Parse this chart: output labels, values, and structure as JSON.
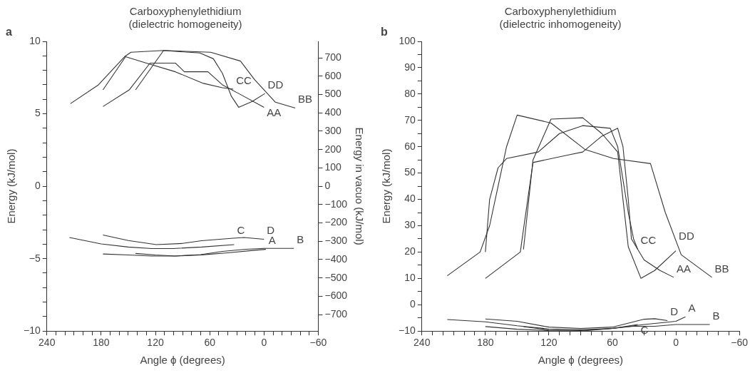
{
  "chart_data": [
    {
      "type": "line",
      "title": "Carboxyphenylethidium\n(dielectric homogeneity)",
      "xlabel": "Angle ϕ (degrees)",
      "ylabel": "Energy (kJ/mol)",
      "y2label": "Energy in vacuo (kJ/mol)",
      "annotations": [
        "a"
      ],
      "xlim": [
        240,
        -60
      ],
      "xticks": [
        240,
        {
          "value": 230,
          "label": null
        },
        {
          "value": 220,
          "label": null
        },
        {
          "value": 210,
          "label": null
        },
        {
          "value": 200,
          "label": null
        },
        {
          "value": 190,
          "label": null
        },
        180,
        {
          "value": 170,
          "label": null
        },
        {
          "value": 160,
          "label": null
        },
        {
          "value": 150,
          "label": null
        },
        {
          "value": 140,
          "label": null
        },
        {
          "value": 130,
          "label": null
        },
        120,
        {
          "value": 110,
          "label": null
        },
        {
          "value": 100,
          "label": null
        },
        {
          "value": 90,
          "label": null
        },
        {
          "value": 80,
          "label": null
        },
        {
          "value": 70,
          "label": null
        },
        60,
        {
          "value": 50,
          "label": null
        },
        {
          "value": 40,
          "label": null
        },
        {
          "value": 30,
          "label": null
        },
        {
          "value": 20,
          "label": null
        },
        {
          "value": 10,
          "label": null
        },
        0,
        {
          "value": -10,
          "label": null
        },
        {
          "value": -20,
          "label": null
        },
        {
          "value": -30,
          "label": null
        },
        {
          "value": -40,
          "label": null
        },
        {
          "value": -50,
          "label": null
        },
        -60
      ],
      "ylim": [
        -10,
        10
      ],
      "yticks": [
        -10,
        {
          "value": -9,
          "label": null
        },
        {
          "value": -8,
          "label": null
        },
        {
          "value": -7,
          "label": null
        },
        {
          "value": -6,
          "label": null
        },
        -5,
        {
          "value": -4,
          "label": null
        },
        {
          "value": -3,
          "label": null
        },
        {
          "value": -2,
          "label": null
        },
        {
          "value": -1,
          "label": null
        },
        0,
        {
          "value": 1,
          "label": null
        },
        {
          "value": 2,
          "label": null
        },
        {
          "value": 3,
          "label": null
        },
        {
          "value": 4,
          "label": null
        },
        5,
        {
          "value": 6,
          "label": null
        },
        {
          "value": 7,
          "label": null
        },
        {
          "value": 8,
          "label": null
        },
        {
          "value": 9,
          "label": null
        },
        10
      ],
      "y2lim": [
        -790,
        790
      ],
      "y2ticks": [
        -700,
        -600,
        -500,
        -400,
        -300,
        -200,
        -100,
        0,
        100,
        200,
        300,
        400,
        500,
        600,
        700
      ],
      "grid": false,
      "legend": false,
      "marker": "none",
      "line_style": "solid",
      "series": [
        {
          "name": "AA",
          "color": "#333333",
          "x": [
            178,
            149,
            126,
            98,
            88,
            62,
            46,
            28,
            0
          ],
          "values": [
            5.5,
            6.65,
            8.5,
            8.5,
            7.9,
            7.9,
            7.0,
            6.4,
            5.45
          ]
        },
        {
          "name": "BB",
          "color": "#333333",
          "x": [
            214,
            183,
            154,
            147,
            111,
            59,
            26,
            10.6,
            -12.6,
            -34.5
          ],
          "values": [
            5.7,
            7.0,
            8.95,
            9.25,
            9.37,
            9.25,
            8.64,
            7.37,
            5.8,
            5.4
          ]
        },
        {
          "name": "CC",
          "color": "#333333",
          "x": [
            178,
            153,
            130,
            98,
            67,
            46,
            34
          ],
          "values": [
            6.65,
            8.94,
            8.5,
            7.9,
            7.1,
            6.8,
            6.7
          ]
        },
        {
          "name": "DD",
          "color": "#333333",
          "x": [
            142,
            111,
            71,
            56,
            46,
            36,
            28,
            13,
            -1
          ],
          "values": [
            6.65,
            9.37,
            9.2,
            8.8,
            7.8,
            6.2,
            5.45,
            5.85,
            6.4
          ]
        },
        {
          "name": "A",
          "color": "#333333",
          "x": [
            178,
            150,
            124,
            98,
            69,
            40,
            10,
            -2
          ],
          "values": [
            -4.68,
            -4.75,
            -4.82,
            -4.82,
            -4.74,
            -4.6,
            -4.42,
            -4.36
          ]
        },
        {
          "name": "B",
          "color": "#333333",
          "x": [
            142,
            120,
            98,
            70,
            46,
            20,
            0,
            -33
          ],
          "values": [
            -4.64,
            -4.75,
            -4.82,
            -4.72,
            -4.5,
            -4.35,
            -4.29,
            -4.29
          ]
        },
        {
          "name": "C",
          "color": "#333333",
          "x": [
            215,
            180,
            150,
            124,
            100,
            69,
            33
          ],
          "values": [
            -3.54,
            -3.98,
            -4.2,
            -4.3,
            -4.3,
            -4.2,
            -4.03
          ]
        },
        {
          "name": "D",
          "color": "#333333",
          "x": [
            178,
            150,
            119,
            90,
            69,
            34,
            22,
            0
          ],
          "values": [
            -3.37,
            -3.75,
            -4.03,
            -3.95,
            -3.76,
            -3.59,
            -3.54,
            -3.66
          ]
        }
      ]
    },
    {
      "type": "line",
      "title": "Carboxyphenylethidium\n(dielectric inhomogeneity)",
      "xlabel": "Angle ϕ (degrees)",
      "ylabel": "Energy (kJ/mol)",
      "annotations": [
        "b"
      ],
      "xlim": [
        240,
        -60
      ],
      "xticks": [
        240,
        {
          "value": 230,
          "label": null
        },
        {
          "value": 220,
          "label": null
        },
        {
          "value": 210,
          "label": null
        },
        {
          "value": 200,
          "label": null
        },
        {
          "value": 190,
          "label": null
        },
        180,
        {
          "value": 170,
          "label": null
        },
        {
          "value": 160,
          "label": null
        },
        {
          "value": 150,
          "label": null
        },
        {
          "value": 140,
          "label": null
        },
        {
          "value": 130,
          "label": null
        },
        120,
        {
          "value": 110,
          "label": null
        },
        {
          "value": 100,
          "label": null
        },
        {
          "value": 90,
          "label": null
        },
        {
          "value": 80,
          "label": null
        },
        {
          "value": 70,
          "label": null
        },
        60,
        {
          "value": 50,
          "label": null
        },
        {
          "value": 40,
          "label": null
        },
        {
          "value": 30,
          "label": null
        },
        {
          "value": 20,
          "label": null
        },
        {
          "value": 10,
          "label": null
        },
        0,
        {
          "value": -10,
          "label": null
        },
        {
          "value": -20,
          "label": null
        },
        {
          "value": -30,
          "label": null
        },
        {
          "value": -40,
          "label": null
        },
        {
          "value": -50,
          "label": null
        },
        -60
      ],
      "ylim": [
        -10,
        100
      ],
      "yticks": [
        -10,
        {
          "value": -5,
          "label": null
        },
        0,
        {
          "value": 5,
          "label": null
        },
        10,
        {
          "value": 15,
          "label": null
        },
        20,
        {
          "value": 25,
          "label": null
        },
        30,
        {
          "value": 35,
          "label": null
        },
        40,
        {
          "value": 45,
          "label": null
        },
        50,
        {
          "value": 55,
          "label": null
        },
        60,
        {
          "value": 65,
          "label": null
        },
        70,
        {
          "value": 75,
          "label": null
        },
        80,
        {
          "value": 85,
          "label": null
        },
        90,
        {
          "value": 95,
          "label": null
        },
        100
      ],
      "grid": false,
      "legend": false,
      "marker": "none",
      "line_style": "solid",
      "series": [
        {
          "name": "AA",
          "color": "#333333",
          "x": [
            180,
            147,
            140,
            135,
            100,
            88,
            70,
            55,
            50,
            45,
            42,
            30,
            15,
            2
          ],
          "values": [
            10,
            20,
            40,
            54,
            57,
            58,
            64,
            67,
            60,
            40,
            25,
            17,
            13,
            10.4
          ]
        },
        {
          "name": "BB",
          "color": "#333333",
          "x": [
            216,
            185,
            176,
            168,
            160,
            150,
            118,
            86,
            59,
            24,
            10,
            -5,
            -34
          ],
          "values": [
            11,
            20,
            30,
            45,
            60,
            72,
            69,
            59,
            55.5,
            53.6,
            35,
            19,
            10.4
          ]
        },
        {
          "name": "CC",
          "color": "#333333",
          "x": [
            180,
            176,
            168,
            160,
            130,
            110,
            88,
            62,
            55,
            45,
            40,
            36
          ],
          "values": [
            20,
            40,
            52,
            55.5,
            58,
            65,
            68,
            67,
            60,
            35,
            25,
            21
          ]
        },
        {
          "name": "DD",
          "color": "#333333",
          "x": [
            144,
            135,
            118,
            88,
            70,
            55,
            50,
            45,
            33,
            20,
            0
          ],
          "values": [
            21,
            55,
            70.5,
            71,
            65,
            58,
            40,
            22,
            10,
            13,
            20.5
          ]
        },
        {
          "name": "A",
          "color": "#333333",
          "x": [
            180,
            150,
            120,
            90,
            60,
            30,
            0,
            -9
          ],
          "values": [
            -8.3,
            -9.3,
            -9.8,
            -10,
            -9,
            -7.5,
            -6.3,
            -4.6
          ]
        },
        {
          "name": "B",
          "color": "#333333",
          "x": [
            144,
            120,
            90,
            60,
            40,
            20,
            0,
            -32
          ],
          "values": [
            -8.3,
            -9.6,
            -9.8,
            -9,
            -8.2,
            -8.2,
            -7.5,
            -7.5
          ]
        },
        {
          "name": "C",
          "color": "#333333",
          "x": [
            216,
            180,
            150,
            120,
            90,
            60,
            36
          ],
          "values": [
            -5.6,
            -6.5,
            -8,
            -9.2,
            -9.5,
            -9,
            -7.5
          ]
        },
        {
          "name": "D",
          "color": "#333333",
          "x": [
            180,
            150,
            120,
            90,
            60,
            30,
            20,
            8
          ],
          "values": [
            -5.4,
            -6.3,
            -8.5,
            -9,
            -8.5,
            -5.5,
            -5.3,
            -6
          ]
        }
      ]
    }
  ]
}
